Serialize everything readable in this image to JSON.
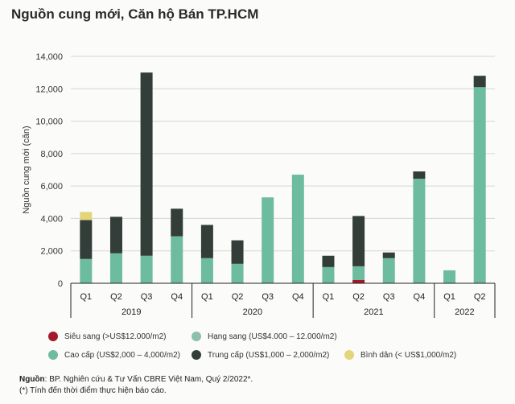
{
  "chart_data": {
    "type": "bar",
    "stacked": true,
    "title": "Nguồn cung mới, Căn hộ Bán TP.HCM",
    "ylabel": "Nguồn cung mới (căn)",
    "xlabel": "",
    "ylim": [
      0,
      14000
    ],
    "yticks": [
      "0",
      "2,000",
      "4,000",
      "6,000",
      "8,000",
      "10,000",
      "12,000",
      "14,000"
    ],
    "grid": true,
    "legend_position": "bottom",
    "categories": [
      "Q1",
      "Q2",
      "Q3",
      "Q4",
      "Q1",
      "Q2",
      "Q3",
      "Q4",
      "Q1",
      "Q2",
      "Q3",
      "Q4",
      "Q1",
      "Q2"
    ],
    "years": [
      {
        "label": "2019",
        "count": 4
      },
      {
        "label": "2020",
        "count": 4
      },
      {
        "label": "2021",
        "count": 4
      },
      {
        "label": "2022",
        "count": 2
      }
    ],
    "series": [
      {
        "name": "Siêu sang (>US$12.000/m2)",
        "color": "#a3182a",
        "values": [
          0,
          0,
          0,
          0,
          0,
          0,
          0,
          0,
          0,
          200,
          0,
          0,
          0,
          0
        ]
      },
      {
        "name": "Hạng sang (US$4.000 – 12.000/m2)",
        "color": "#8dbfae",
        "values": [
          0,
          0,
          0,
          0,
          0,
          0,
          0,
          0,
          0,
          0,
          0,
          0,
          0,
          0
        ]
      },
      {
        "name": "Cao cấp (US$2,000 – 4,000/m2)",
        "color": "#6dbc9f",
        "values": [
          1500,
          1850,
          1700,
          2900,
          1550,
          1200,
          5300,
          6700,
          1000,
          850,
          1550,
          6450,
          800,
          12100
        ]
      },
      {
        "name": "Trung cấp (US$1,000 – 2,000/m2)",
        "color": "#333d39",
        "values": [
          2400,
          2250,
          11300,
          1700,
          2050,
          1450,
          0,
          0,
          700,
          3100,
          350,
          450,
          0,
          700
        ]
      },
      {
        "name": "Bình dân (< US$1,000/m2)",
        "color": "#e3d579",
        "values": [
          500,
          0,
          0,
          0,
          0,
          0,
          0,
          0,
          0,
          0,
          0,
          0,
          0,
          0
        ]
      }
    ]
  },
  "footer": {
    "source_label": "Nguồn",
    "source_text": ": BP. Nghiên cứu & Tư Vấn CBRE Việt Nam, Quý 2/2022*.",
    "note": "(*) Tính đến thời điểm thực hiện báo cáo."
  }
}
